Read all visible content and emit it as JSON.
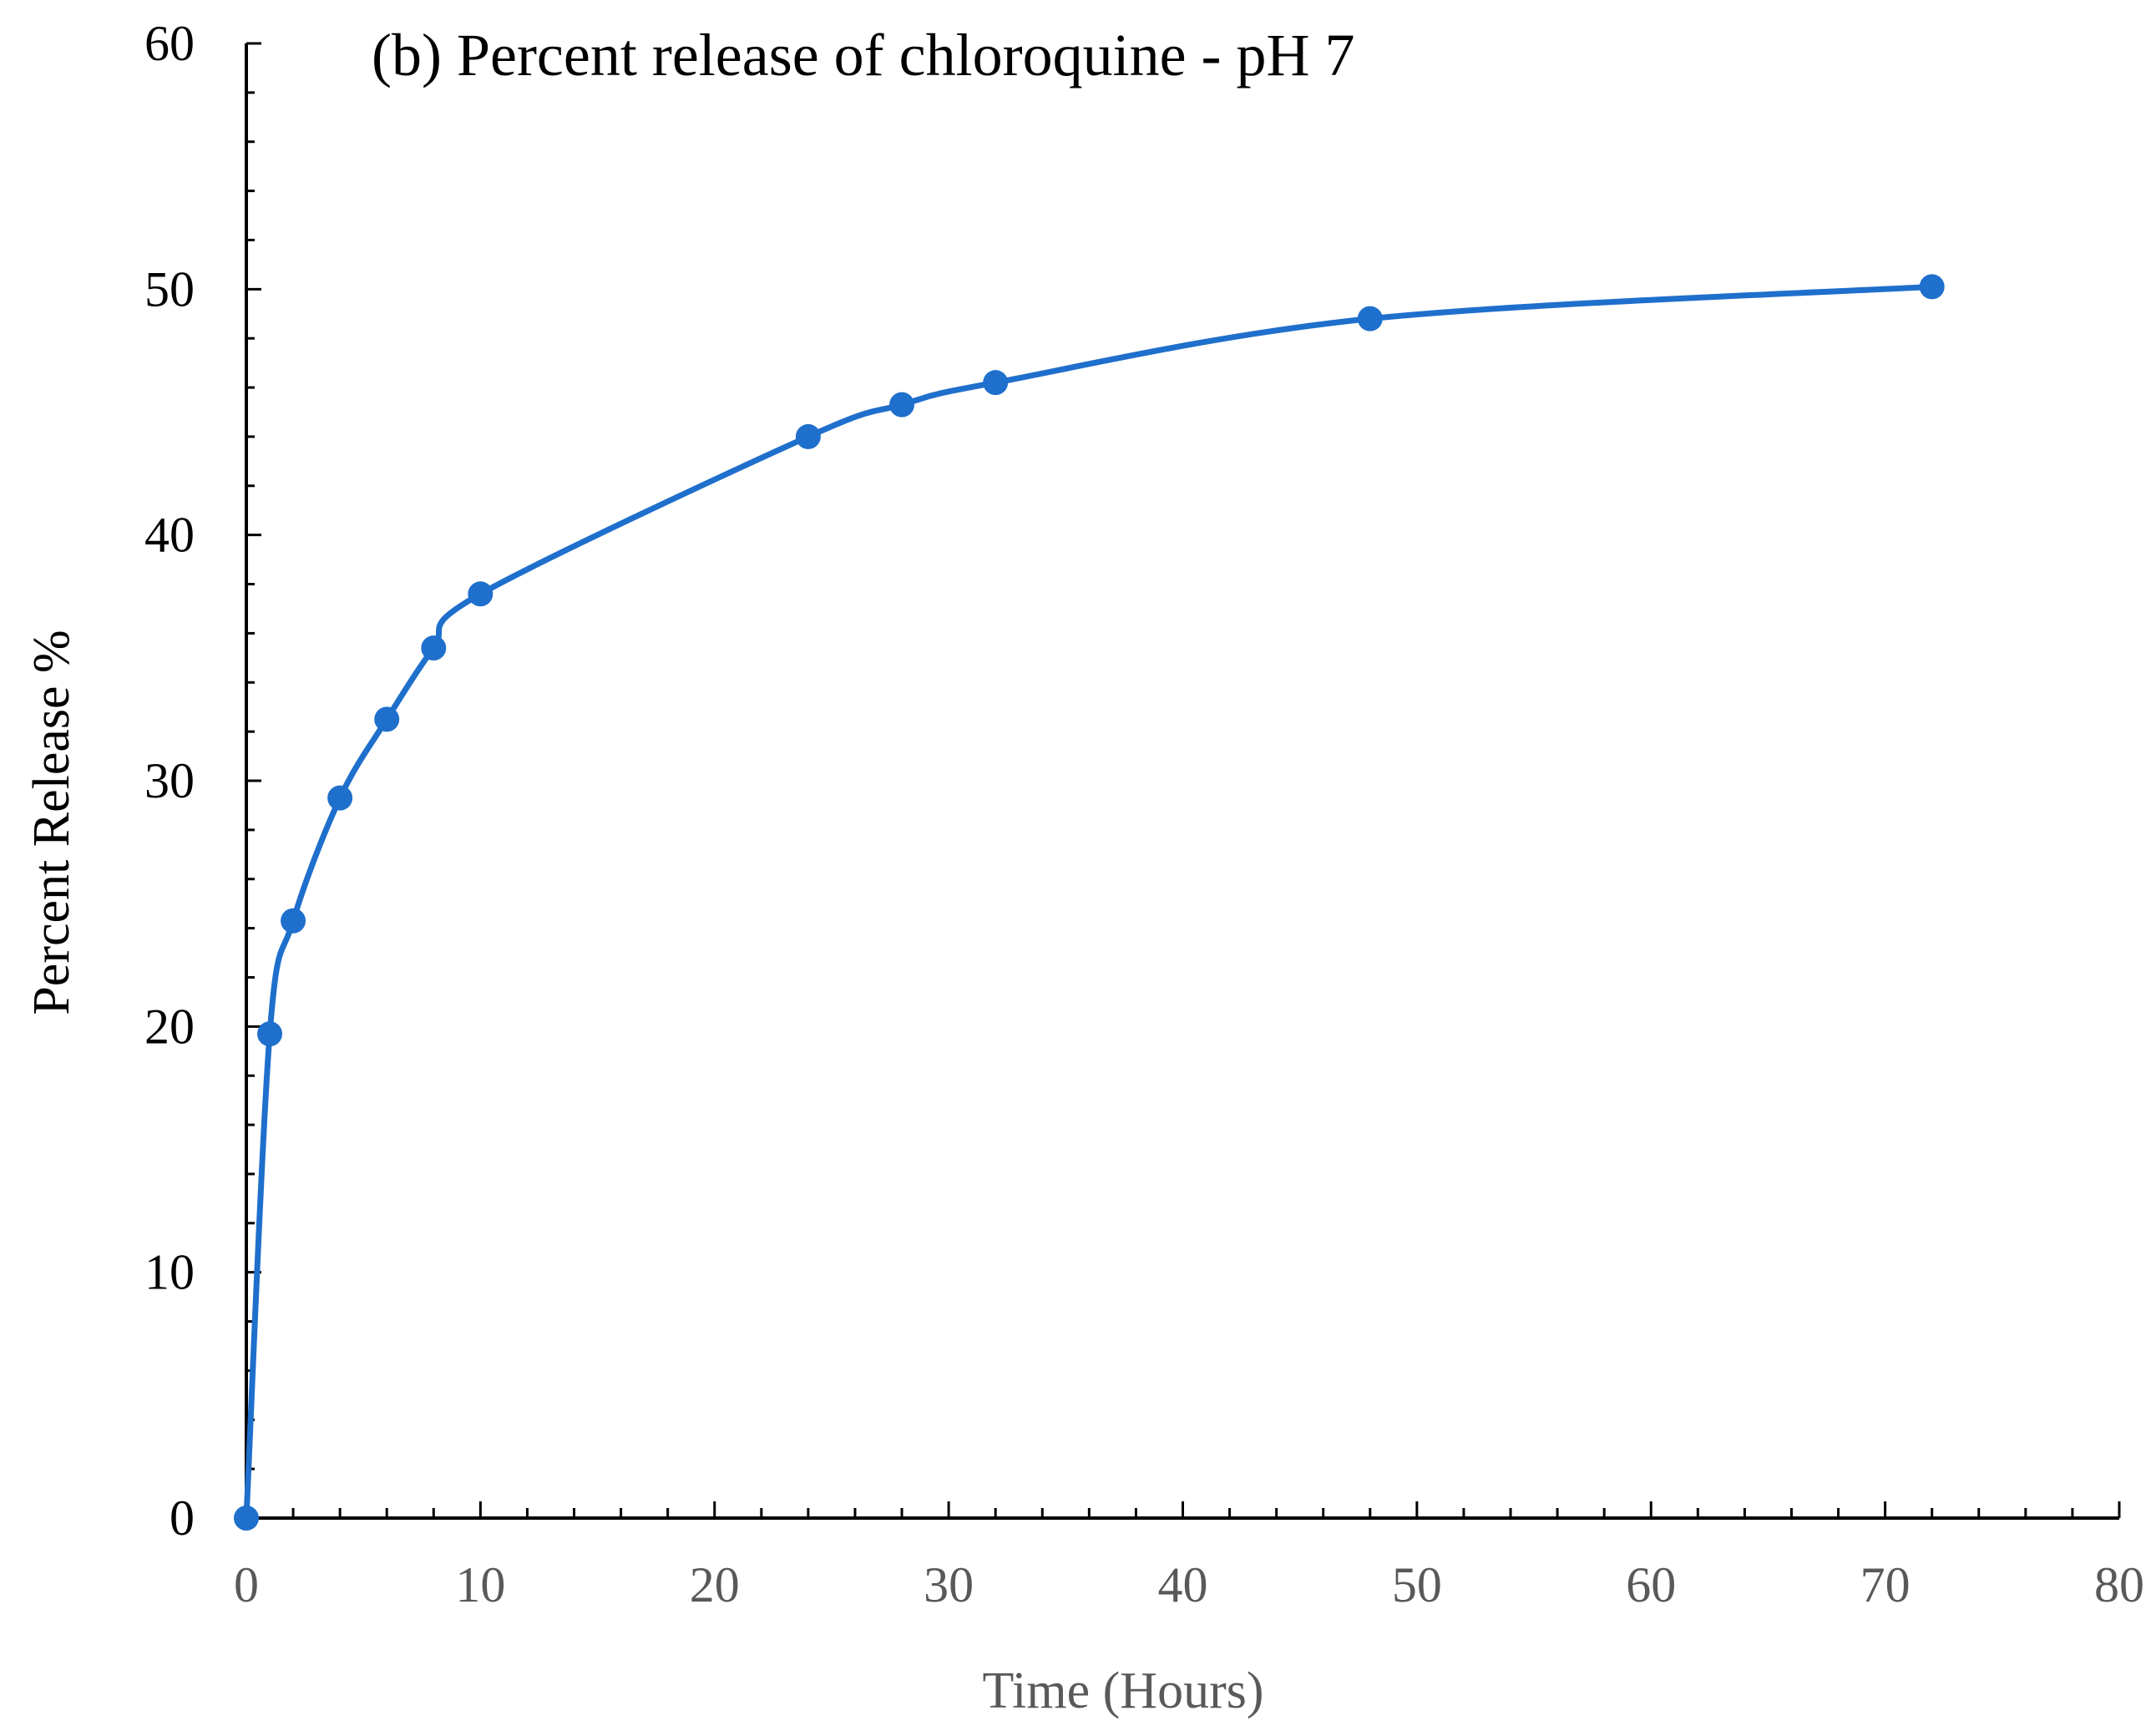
{
  "chart_data": {
    "type": "line",
    "title": "(b) Percent release of chloroquine  - pH 7",
    "xlabel": "Time (Hours)",
    "ylabel": "Percent Release %",
    "xlim": [
      0,
      80
    ],
    "ylim": [
      0,
      60
    ],
    "x_ticks": [
      0,
      10,
      20,
      30,
      40,
      50,
      60,
      70,
      80
    ],
    "y_ticks": [
      0,
      10,
      20,
      30,
      40,
      50,
      60
    ],
    "x_minor_step": 2,
    "y_minor_step": 2,
    "grid": false,
    "smooth": true,
    "series": [
      {
        "color": "#1F6FCC",
        "x": [
          0,
          1,
          2,
          4,
          6,
          8,
          10,
          24,
          28,
          32,
          48,
          72
        ],
        "y": [
          0,
          19.7,
          24.3,
          29.3,
          32.5,
          35.4,
          37.6,
          44.0,
          45.3,
          46.2,
          48.8,
          50.1
        ]
      }
    ]
  }
}
